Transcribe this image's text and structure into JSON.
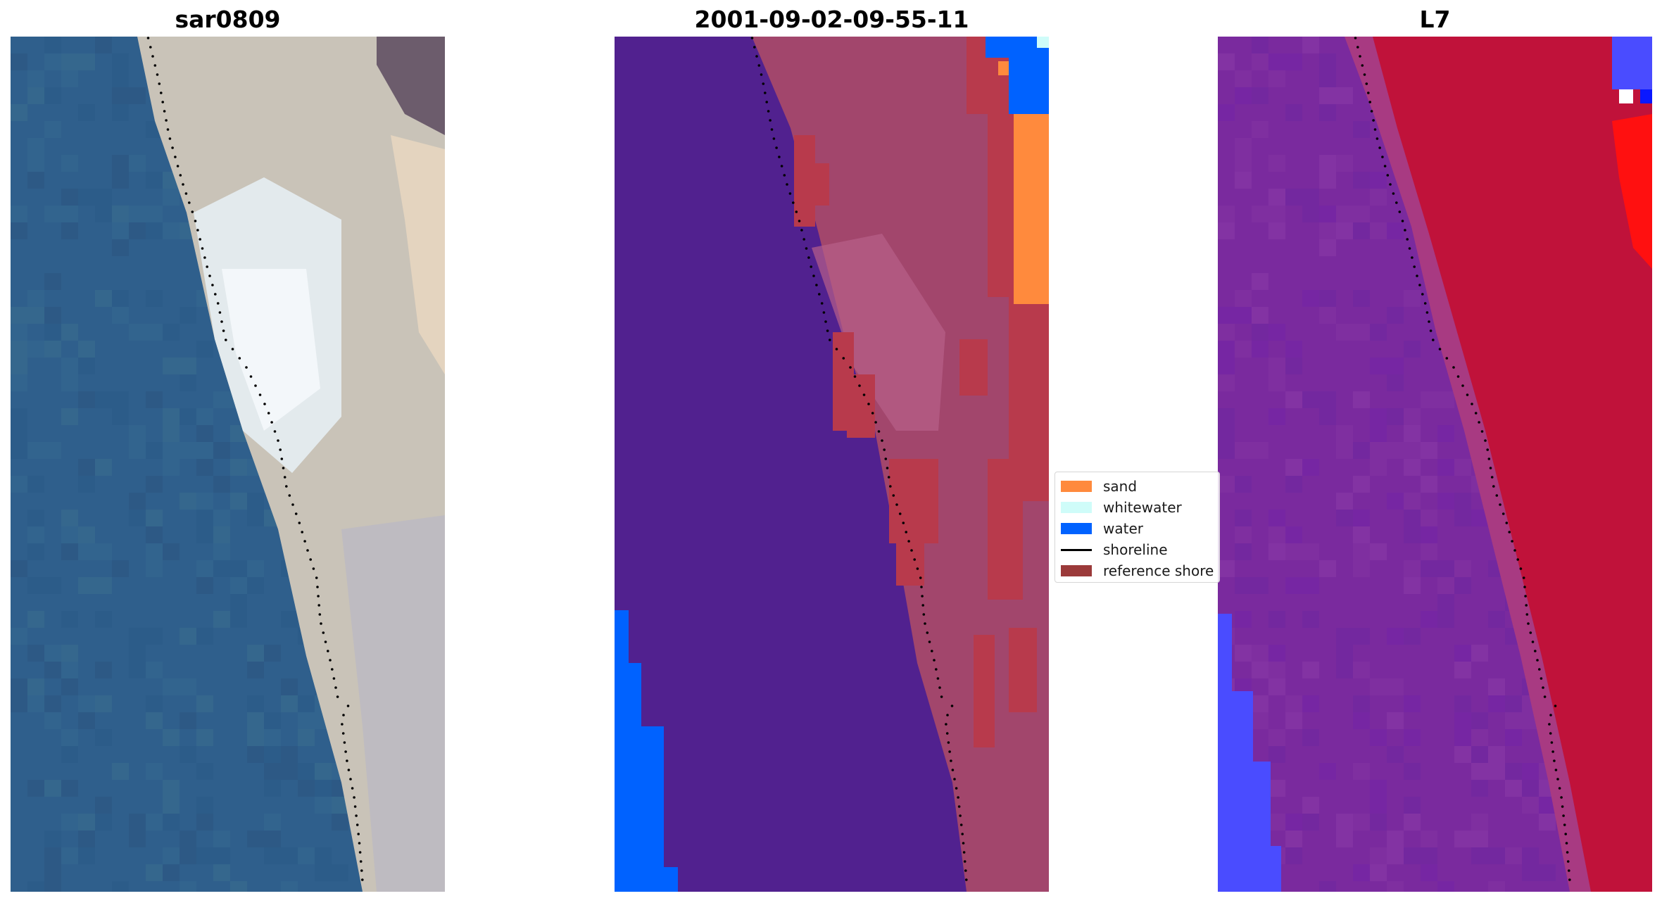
{
  "panels": [
    {
      "title": "sar0809",
      "colors": {
        "sea": "#2f5f8c",
        "foam": "#e3ebf0",
        "beach": "#c8c2b8",
        "dune": "#6a5a6a"
      }
    },
    {
      "title": "2001-09-02-09-55-11",
      "colors": {
        "sea": "#51218f",
        "land": "#a2466c",
        "reference": "#b83a4c",
        "sand": "#ff8a3d",
        "water": "#0062ff",
        "whitewater": "#cffcf9"
      }
    },
    {
      "title": "L7",
      "colors": {
        "sea": "#7a2a9e",
        "land": "#c0123a",
        "bright": "#ff1010",
        "blue": "#4a4cff"
      }
    }
  ],
  "legend": {
    "items": [
      {
        "label": "sand",
        "color": "#ff8a3d",
        "kind": "patch"
      },
      {
        "label": "whitewater",
        "color": "#cffcf9",
        "kind": "patch"
      },
      {
        "label": "water",
        "color": "#0062ff",
        "kind": "patch"
      },
      {
        "label": "shoreline",
        "color": "#000000",
        "kind": "line"
      },
      {
        "label": "reference shore",
        "color": "#9b3a3a",
        "kind": "patch"
      }
    ]
  }
}
